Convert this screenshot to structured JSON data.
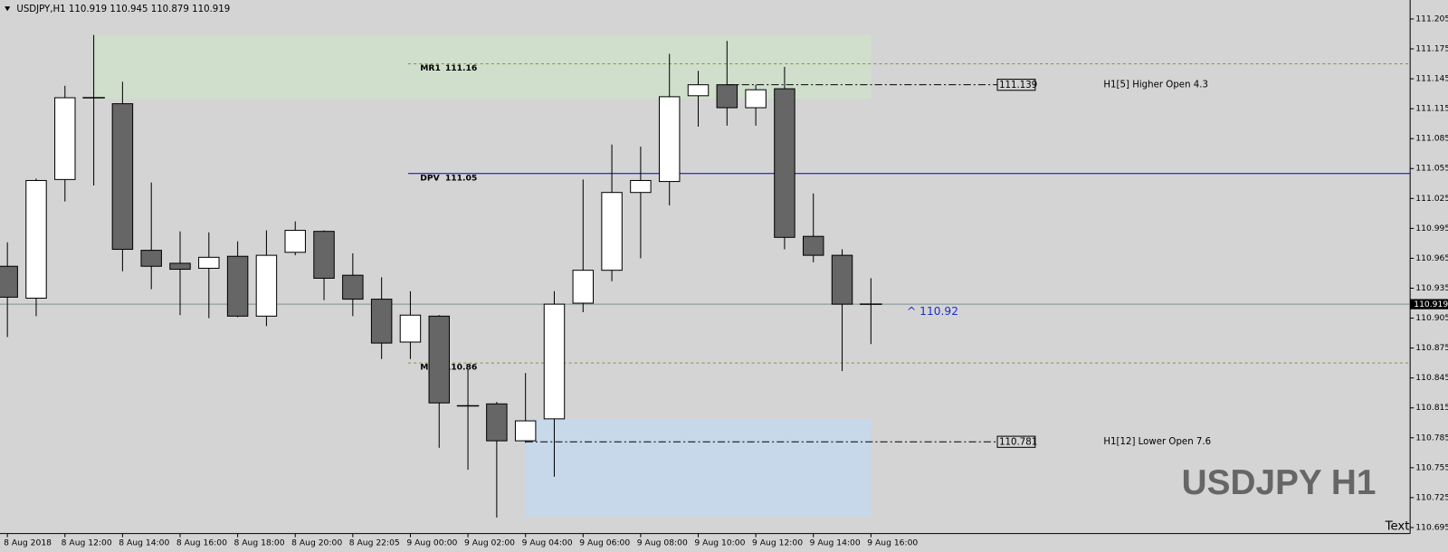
{
  "chart_data": {
    "type": "candlestick",
    "title": "USDJPY,H1",
    "watermark": "USDJPY H1",
    "corner_text": "Text",
    "annotation": "^ 110.92",
    "categories": [
      "8 Aug 2018",
      null,
      "8 Aug 12:00",
      null,
      "8 Aug 14:00",
      null,
      "8 Aug 16:00",
      null,
      "8 Aug 18:00",
      null,
      "8 Aug 20:00",
      null,
      "8 Aug 22:05",
      null,
      "9 Aug 00:00",
      null,
      "9 Aug 02:00",
      null,
      "9 Aug 04:00",
      null,
      "9 Aug 06:00",
      null,
      "9 Aug 08:00",
      null,
      "9 Aug 10:00",
      null,
      "9 Aug 12:00",
      null,
      "9 Aug 14:00",
      null,
      "9 Aug 16:00"
    ],
    "open": [
      110.957,
      110.925,
      111.044,
      111.126,
      111.12,
      110.973,
      110.96,
      110.955,
      110.967,
      110.907,
      110.971,
      110.992,
      110.948,
      110.924,
      110.881,
      110.907,
      110.817,
      110.819,
      110.782,
      110.804,
      110.92,
      110.953,
      111.031,
      111.042,
      111.128,
      111.139,
      111.116,
      111.135,
      110.987,
      110.968,
      110.919
    ],
    "high": [
      110.981,
      111.045,
      111.138,
      111.189,
      111.142,
      111.041,
      110.992,
      110.991,
      110.982,
      110.993,
      111.002,
      110.993,
      110.97,
      110.946,
      110.932,
      110.908,
      110.854,
      110.821,
      110.85,
      110.932,
      111.044,
      111.079,
      111.077,
      111.17,
      111.153,
      111.183,
      111.139,
      111.157,
      111.03,
      110.974,
      110.945
    ],
    "low": [
      110.886,
      110.907,
      111.022,
      111.038,
      110.952,
      110.934,
      110.908,
      110.905,
      110.906,
      110.897,
      110.968,
      110.923,
      110.907,
      110.864,
      110.864,
      110.775,
      110.753,
      110.705,
      110.78,
      110.746,
      110.911,
      110.942,
      110.965,
      111.018,
      111.097,
      111.098,
      111.098,
      110.974,
      110.961,
      110.852,
      110.879
    ],
    "close": [
      110.926,
      111.043,
      111.126,
      111.125,
      110.974,
      110.957,
      110.954,
      110.966,
      110.907,
      110.968,
      110.993,
      110.945,
      110.924,
      110.88,
      110.908,
      110.82,
      110.817,
      110.782,
      110.802,
      110.919,
      110.953,
      111.031,
      111.043,
      111.127,
      111.139,
      111.116,
      111.134,
      110.986,
      110.968,
      110.919,
      110.919
    ],
    "up_color": "#ffffff",
    "down_color": "#666666",
    "ylim": [
      110.689,
      111.224
    ],
    "yticks": [
      111.205,
      111.175,
      111.145,
      111.115,
      111.085,
      111.055,
      111.025,
      110.995,
      110.965,
      110.935,
      110.905,
      110.875,
      110.845,
      110.815,
      110.785,
      110.755,
      110.725,
      110.695
    ],
    "levels": [
      {
        "name": "MR1",
        "value": 111.16,
        "color": "#8f8f3a",
        "style": "dashed"
      },
      {
        "name": "DPV",
        "value": 111.05,
        "color": "#0000cc",
        "style": "solid"
      },
      {
        "name": "MS1",
        "value": 110.86,
        "color": "#8f8f3a",
        "style": "dashed"
      }
    ],
    "zones": [
      {
        "top": 111.189,
        "bottom": 111.125,
        "color": "#cfdfcc"
      },
      {
        "top": 110.803,
        "bottom": 110.706,
        "color": "#c6d8ea"
      }
    ],
    "markers": [
      {
        "label": "H1[5] Higher Open 4.3",
        "value": 111.139
      },
      {
        "label": "H1[12] Lower Open 7.6",
        "value": 110.781
      }
    ]
  }
}
